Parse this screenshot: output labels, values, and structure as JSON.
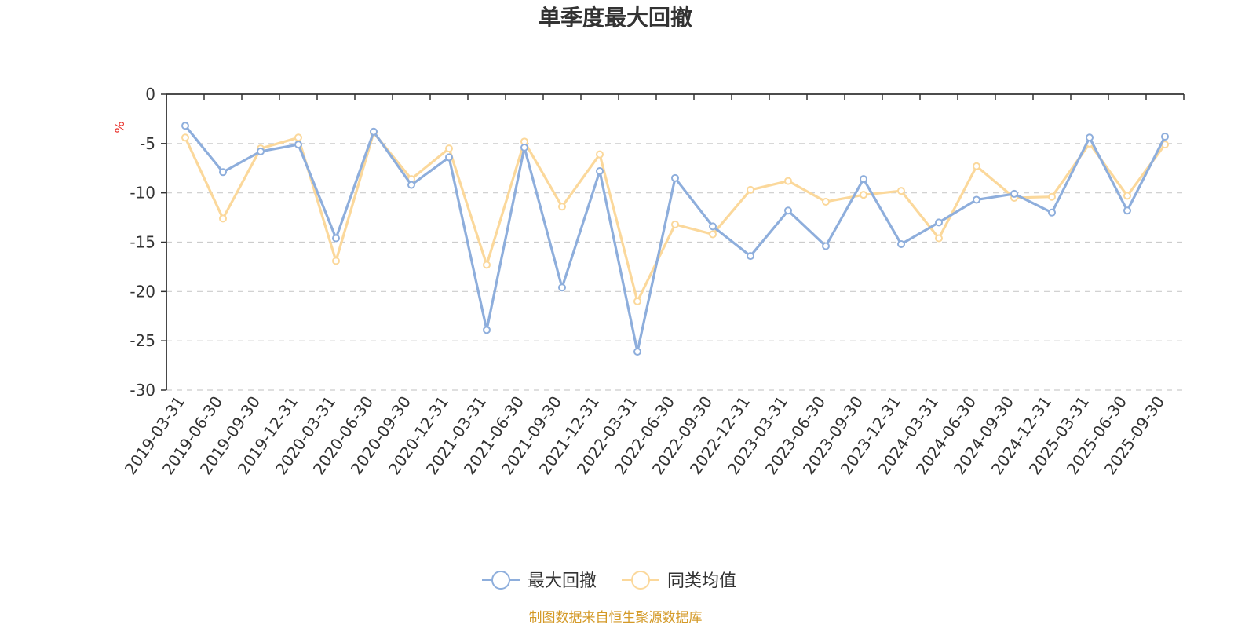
{
  "chart_data": {
    "type": "line",
    "title": "单季度最大回撤",
    "ylabel": "%",
    "ylim": [
      -30,
      0
    ],
    "yticks": [
      0,
      -5,
      -10,
      -15,
      -20,
      -25,
      -30
    ],
    "grid": true,
    "legend_position": "bottom",
    "categories": [
      "2019-03-31",
      "2019-06-30",
      "2019-09-30",
      "2019-12-31",
      "2020-03-31",
      "2020-06-30",
      "2020-09-30",
      "2020-12-31",
      "2021-03-31",
      "2021-06-30",
      "2021-09-30",
      "2021-12-31",
      "2022-03-31",
      "2022-06-30",
      "2022-09-30",
      "2022-12-31",
      "2023-03-31",
      "2023-06-30",
      "2023-09-30",
      "2023-12-31",
      "2024-03-31",
      "2024-06-30",
      "2024-09-30",
      "2024-12-31",
      "2025-03-31",
      "2025-06-30",
      "2025-09-30"
    ],
    "series": [
      {
        "name": "最大回撤",
        "color": "#8eaedc",
        "values": [
          -3.2,
          -7.9,
          -5.8,
          -5.1,
          -14.6,
          -3.8,
          -9.2,
          -6.4,
          -23.9,
          -5.4,
          -19.6,
          -7.8,
          -26.1,
          -8.5,
          -13.4,
          -16.4,
          -11.8,
          -15.4,
          -8.6,
          -15.2,
          -13.0,
          -10.7,
          -10.1,
          -12.0,
          -4.4,
          -11.8,
          -4.3
        ],
        "symbol": "circle"
      },
      {
        "name": "同类均值",
        "color": "#fbd89b",
        "values": [
          -4.4,
          -12.6,
          -5.5,
          -4.4,
          -16.9,
          -3.9,
          -8.6,
          -5.5,
          -17.3,
          -4.8,
          -11.4,
          -6.1,
          -21.0,
          -13.2,
          -14.2,
          -9.7,
          -8.8,
          -10.9,
          -10.2,
          -9.8,
          -14.6,
          -7.3,
          -10.5,
          -10.4,
          -5.0,
          -10.3,
          -5.1
        ],
        "symbol": "circle"
      }
    ]
  },
  "footer": {
    "source_text": "制图数据来自恒生聚源数据库",
    "source_color": "#d49a28"
  },
  "colors": {
    "axis": "#333333",
    "grid": "#cccccc",
    "unit": "#e8332d",
    "text": "#333333"
  }
}
